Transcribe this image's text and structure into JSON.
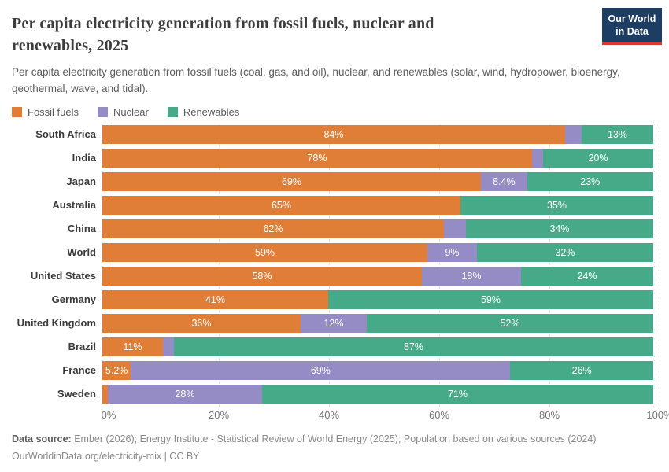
{
  "header": {
    "title": "Per capita electricity generation from fossil fuels, nuclear and renewables, 2025",
    "subtitle": "Per capita electricity generation from fossil fuels (coal, gas, and oil), nuclear, and renewables (solar, wind, hydropower, bioenergy, geothermal, wave, and tidal).",
    "logo_line1": "Our World",
    "logo_line2": "in Data"
  },
  "colors": {
    "fossil": "#e07e38",
    "nuclear": "#968cc5",
    "renewables": "#46aa88",
    "logo_bg": "#1d3d63",
    "logo_stripe": "#d73b32"
  },
  "legend": [
    {
      "label": "Fossil fuels",
      "color": "#e07e38"
    },
    {
      "label": "Nuclear",
      "color": "#968cc5"
    },
    {
      "label": "Renewables",
      "color": "#46aa88"
    }
  ],
  "chart_data": {
    "type": "bar",
    "stacked": true,
    "orientation": "horizontal",
    "series_names": [
      "Fossil fuels",
      "Nuclear",
      "Renewables"
    ],
    "xlim": [
      0,
      100
    ],
    "x_ticks": [
      "0%",
      "20%",
      "40%",
      "60%",
      "80%",
      "100%"
    ],
    "grid": true,
    "legend_position": "top",
    "categories": [
      "South Africa",
      "India",
      "Japan",
      "Australia",
      "China",
      "World",
      "United States",
      "Germany",
      "United Kingdom",
      "Brazil",
      "France",
      "Sweden"
    ],
    "rows": [
      {
        "country": "South Africa",
        "segments": [
          {
            "name": "Fossil fuels",
            "value": 84,
            "label": "84%"
          },
          {
            "name": "Nuclear",
            "value": 3,
            "label": ""
          },
          {
            "name": "Renewables",
            "value": 13,
            "label": "13%"
          }
        ]
      },
      {
        "country": "India",
        "segments": [
          {
            "name": "Fossil fuels",
            "value": 78,
            "label": "78%"
          },
          {
            "name": "Nuclear",
            "value": 2,
            "label": ""
          },
          {
            "name": "Renewables",
            "value": 20,
            "label": "20%"
          }
        ]
      },
      {
        "country": "Japan",
        "segments": [
          {
            "name": "Fossil fuels",
            "value": 69,
            "label": "69%"
          },
          {
            "name": "Nuclear",
            "value": 8.4,
            "label": "8.4%"
          },
          {
            "name": "Renewables",
            "value": 23,
            "label": "23%"
          }
        ]
      },
      {
        "country": "Australia",
        "segments": [
          {
            "name": "Fossil fuels",
            "value": 65,
            "label": "65%"
          },
          {
            "name": "Nuclear",
            "value": 0,
            "label": ""
          },
          {
            "name": "Renewables",
            "value": 35,
            "label": "35%"
          }
        ]
      },
      {
        "country": "China",
        "segments": [
          {
            "name": "Fossil fuels",
            "value": 62,
            "label": "62%"
          },
          {
            "name": "Nuclear",
            "value": 4,
            "label": ""
          },
          {
            "name": "Renewables",
            "value": 34,
            "label": "34%"
          }
        ]
      },
      {
        "country": "World",
        "segments": [
          {
            "name": "Fossil fuels",
            "value": 59,
            "label": "59%"
          },
          {
            "name": "Nuclear",
            "value": 9,
            "label": "9%"
          },
          {
            "name": "Renewables",
            "value": 32,
            "label": "32%"
          }
        ]
      },
      {
        "country": "United States",
        "segments": [
          {
            "name": "Fossil fuels",
            "value": 58,
            "label": "58%"
          },
          {
            "name": "Nuclear",
            "value": 18,
            "label": "18%"
          },
          {
            "name": "Renewables",
            "value": 24,
            "label": "24%"
          }
        ]
      },
      {
        "country": "Germany",
        "segments": [
          {
            "name": "Fossil fuels",
            "value": 41,
            "label": "41%"
          },
          {
            "name": "Nuclear",
            "value": 0,
            "label": ""
          },
          {
            "name": "Renewables",
            "value": 59,
            "label": "59%"
          }
        ]
      },
      {
        "country": "United Kingdom",
        "segments": [
          {
            "name": "Fossil fuels",
            "value": 36,
            "label": "36%"
          },
          {
            "name": "Nuclear",
            "value": 12,
            "label": "12%"
          },
          {
            "name": "Renewables",
            "value": 52,
            "label": "52%"
          }
        ]
      },
      {
        "country": "Brazil",
        "segments": [
          {
            "name": "Fossil fuels",
            "value": 11,
            "label": "11%"
          },
          {
            "name": "Nuclear",
            "value": 2,
            "label": ""
          },
          {
            "name": "Renewables",
            "value": 87,
            "label": "87%"
          }
        ]
      },
      {
        "country": "France",
        "segments": [
          {
            "name": "Fossil fuels",
            "value": 5.2,
            "label": "5.2%"
          },
          {
            "name": "Nuclear",
            "value": 69,
            "label": "69%"
          },
          {
            "name": "Renewables",
            "value": 26,
            "label": "26%"
          }
        ]
      },
      {
        "country": "Sweden",
        "segments": [
          {
            "name": "Fossil fuels",
            "value": 1,
            "label": ""
          },
          {
            "name": "Nuclear",
            "value": 28,
            "label": "28%"
          },
          {
            "name": "Renewables",
            "value": 71,
            "label": "71%"
          }
        ]
      }
    ]
  },
  "footer": {
    "source_label": "Data source:",
    "source_text": " Ember (2026); Energy Institute - Statistical Review of World Energy (2025); Population based on various sources (2024)",
    "url_line": "OurWorldinData.org/electricity-mix | CC BY"
  }
}
